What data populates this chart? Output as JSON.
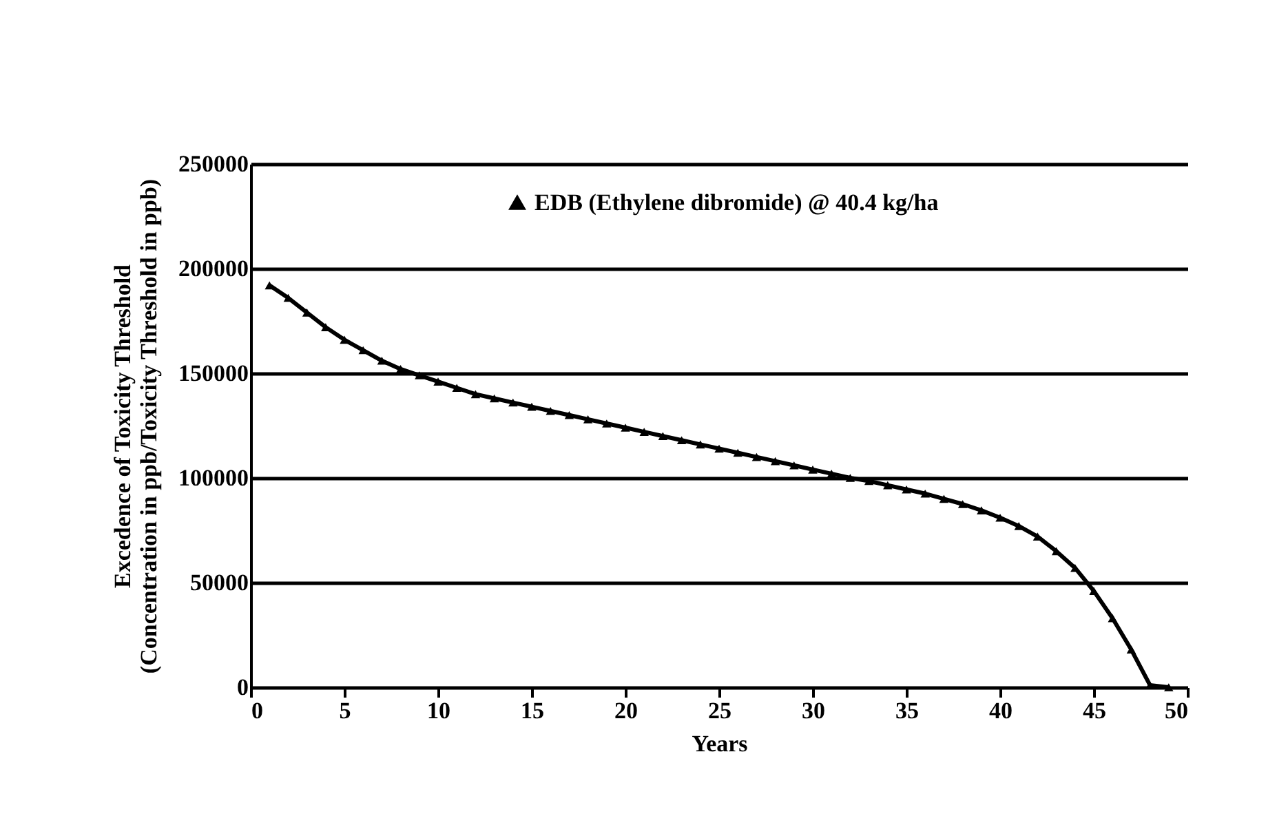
{
  "chart_data": {
    "type": "line",
    "xlabel": "Years",
    "ylabel": "Excedence of Toxicity Threshold\n(Concentration in ppb/Toxicity Threshold in ppb)",
    "x": [
      1,
      2,
      3,
      4,
      5,
      6,
      7,
      8,
      9,
      10,
      11,
      12,
      13,
      14,
      15,
      16,
      17,
      18,
      19,
      20,
      21,
      22,
      23,
      24,
      25,
      26,
      27,
      28,
      29,
      30,
      31,
      32,
      33,
      34,
      35,
      36,
      37,
      38,
      39,
      40,
      41,
      42,
      43,
      44,
      45,
      46,
      47,
      48,
      49
    ],
    "series": [
      {
        "name": "EDB (Ethylene dibromide) @ 40.4 kg/ha",
        "color": "#000000",
        "values": [
          192000,
          186000,
          179000,
          172000,
          166000,
          161000,
          156000,
          152000,
          149000,
          146000,
          143000,
          140000,
          138000,
          136000,
          134000,
          132000,
          130000,
          128000,
          126000,
          124000,
          122000,
          120000,
          118000,
          116000,
          114000,
          112000,
          110000,
          108000,
          106000,
          104000,
          102000,
          100000,
          98500,
          96500,
          94500,
          92500,
          90000,
          87500,
          84500,
          81000,
          77000,
          72000,
          65000,
          57000,
          46000,
          33000,
          18000,
          1000,
          0
        ]
      }
    ],
    "xlim": [
      0,
      50
    ],
    "xticks": [
      0,
      5,
      10,
      15,
      20,
      25,
      30,
      35,
      40,
      45,
      50
    ],
    "ylim": [
      0,
      250000
    ],
    "yticks": [
      0,
      50000,
      100000,
      150000,
      200000,
      250000
    ],
    "grid": "y",
    "legend": "top",
    "marker": "triangle",
    "line_style": "solid"
  }
}
